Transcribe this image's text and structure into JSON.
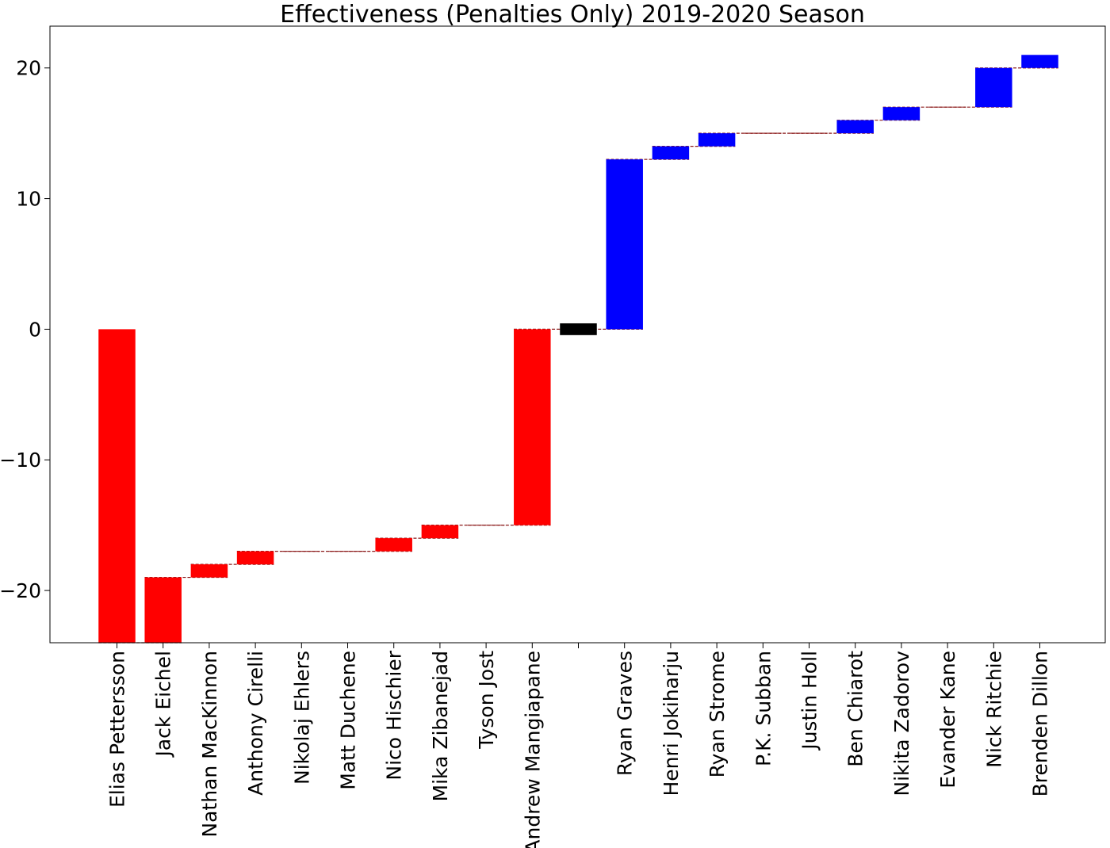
{
  "chart_data": {
    "type": "bar",
    "subtype": "waterfall",
    "title": "Effectiveness (Penalties Only) 2019-2020 Season",
    "xlabel": "",
    "ylabel": "",
    "ylim": [
      -24,
      23.2
    ],
    "y_ticks": [
      -20,
      -10,
      0,
      10,
      20
    ],
    "y_tick_labels": [
      "−20",
      "−10",
      "0",
      "10",
      "20"
    ],
    "grid": false,
    "legend": "none",
    "categories": [
      "Elias Pettersson",
      "Jack Eichel",
      "Nathan MacKinnon",
      "Anthony Cirelli",
      "Nikolaj Ehlers",
      "Matt Duchene",
      "Nico Hischier",
      "Mika Zibanejad",
      "Tyson Jost",
      "Andrew Mangiapane",
      "",
      "Ryan Graves",
      "Henri Jokiharju",
      "Ryan Strome",
      "P.K. Subban",
      "Justin Holl",
      "Ben Chiarot",
      "Nikita Zadorov",
      "Evander Kane",
      "Nick Ritchie",
      "Brenden Dillon"
    ],
    "deltas": [
      -24,
      5,
      1,
      1,
      0,
      0,
      1,
      1,
      0,
      15,
      0,
      13,
      1,
      1,
      0,
      0,
      1,
      1,
      0,
      3,
      1
    ],
    "running_totals": [
      -24,
      -19,
      -18,
      -17,
      -17,
      -17,
      -16,
      -15,
      -15,
      0,
      0,
      13,
      14,
      15,
      15,
      15,
      16,
      17,
      17,
      20,
      21
    ],
    "colors": {
      "negative": "#ff0000",
      "positive": "#0000ff",
      "total": "#000000",
      "connector": "#8b1a1a"
    },
    "bar_kinds": [
      "neg",
      "neg",
      "neg",
      "neg",
      "neg",
      "neg",
      "neg",
      "neg",
      "neg",
      "neg",
      "total",
      "pos",
      "pos",
      "pos",
      "pos",
      "pos",
      "pos",
      "pos",
      "pos",
      "pos",
      "pos"
    ]
  }
}
